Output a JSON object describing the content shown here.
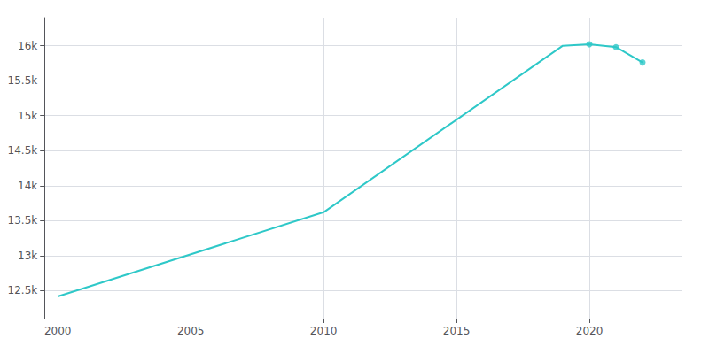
{
  "chart_data": {
    "type": "line",
    "series": [
      {
        "type": "line",
        "color": "#2ec8c8",
        "marker": "none",
        "x": [
          2000,
          2010,
          2019,
          2020,
          2021,
          2022
        ],
        "values": [
          12417,
          13620,
          16000,
          16020,
          15980,
          15760
        ]
      },
      {
        "type": "scatter",
        "color": "#2ec8c8",
        "marker": "circle",
        "x": [
          2020,
          2021,
          2022
        ],
        "values": [
          16020,
          15980,
          15760
        ]
      }
    ],
    "xlim": [
      1999.5,
      2023.5
    ],
    "xticks": [
      2000,
      2005,
      2010,
      2015,
      2020
    ],
    "ylim": [
      12100,
      16400
    ],
    "yticks": [
      {
        "value": 12500,
        "label": "12.5k"
      },
      {
        "value": 13000,
        "label": "13k"
      },
      {
        "value": 13500,
        "label": "13.5k"
      },
      {
        "value": 14000,
        "label": "14k"
      },
      {
        "value": 14500,
        "label": "14.5k"
      },
      {
        "value": 15000,
        "label": "15k"
      },
      {
        "value": 15500,
        "label": "15.5k"
      },
      {
        "value": 16000,
        "label": "16k"
      }
    ],
    "grid": true
  }
}
